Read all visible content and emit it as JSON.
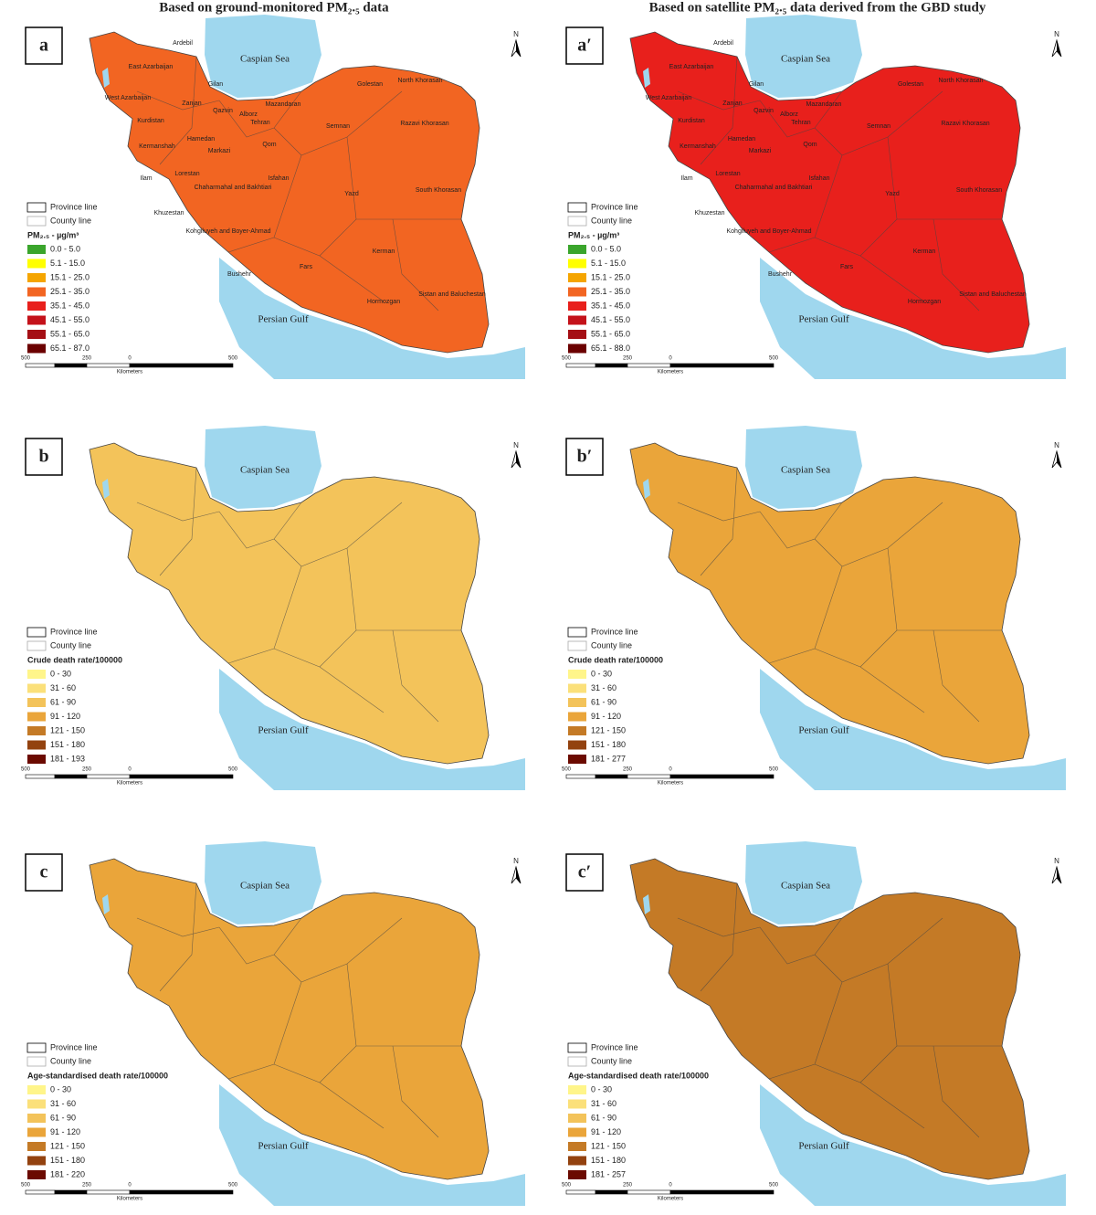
{
  "column_titles": [
    "Based on ground-monitored PM₂.₅ data",
    "Based on satellite PM₂.₅ data derived from the GBD study"
  ],
  "north": "N",
  "seas": [
    "Caspian Sea",
    "Persian Gulf"
  ],
  "boundaries": [
    "Province line",
    "County line"
  ],
  "scale_bar": {
    "ticks": [
      "500",
      "250",
      "0",
      "500"
    ],
    "unit": "Kilometers"
  },
  "panels": [
    {
      "label": "a",
      "legend_title": "PM₂.₅ - µg/m³",
      "map_color": "#f26522",
      "legend": [
        {
          "label": "0.0 - 5.0",
          "color": "#3aa52c"
        },
        {
          "label": "5.1 - 15.0",
          "color": "#ffff00"
        },
        {
          "label": "15.1 - 25.0",
          "color": "#f5a500"
        },
        {
          "label": "25.1 - 35.0",
          "color": "#f26522"
        },
        {
          "label": "35.1 - 45.0",
          "color": "#e8201c"
        },
        {
          "label": "45.1 - 55.0",
          "color": "#c4121a"
        },
        {
          "label": "55.1 - 65.0",
          "color": "#a50f15"
        },
        {
          "label": "65.1 - 87.0",
          "color": "#6b0000"
        }
      ],
      "provinces": [
        "Ardebil",
        "East Azarbaijan",
        "Gilan",
        "West Azarbaijan",
        "Zanjan",
        "Qazvin",
        "Alborz",
        "Tehran",
        "Mazandaran",
        "Golestan",
        "North Khorasan",
        "Razavi Khorasan",
        "Semnan",
        "Kurdistan",
        "Kermanshah",
        "Hamedan",
        "Markazi",
        "Qom",
        "Lorestan",
        "Ilam",
        "Isfahan",
        "Chaharmahal and Bakhtiari",
        "Khuzestan",
        "Kohgiluyeh and Boyer-Ahmad",
        "Yazd",
        "South Khorasan",
        "Bushehr",
        "Fars",
        "Kerman",
        "Hormozgan",
        "Sistan and Baluchestan"
      ]
    },
    {
      "label": "a′",
      "legend_title": "PM₂.₅ - µg/m³",
      "map_color": "#e8201c",
      "legend": [
        {
          "label": "0.0 - 5.0",
          "color": "#3aa52c"
        },
        {
          "label": "5.1 - 15.0",
          "color": "#ffff00"
        },
        {
          "label": "15.1 - 25.0",
          "color": "#f5a500"
        },
        {
          "label": "25.1 - 35.0",
          "color": "#f26522"
        },
        {
          "label": "35.1 - 45.0",
          "color": "#e8201c"
        },
        {
          "label": "45.1 - 55.0",
          "color": "#c4121a"
        },
        {
          "label": "55.1 - 65.0",
          "color": "#a50f15"
        },
        {
          "label": "65.1 - 88.0",
          "color": "#6b0000"
        }
      ],
      "provinces": [
        "Ardebil",
        "East Azarbaijan",
        "Gilan",
        "West Azarbaijan",
        "Zanjan",
        "Qazvin",
        "Alborz",
        "Tehran",
        "Mazandaran",
        "Golestan",
        "North Khorasan",
        "Razavi Khorasan",
        "Semnan",
        "Kurdistan",
        "Kermanshah",
        "Hamedan",
        "Markazi",
        "Qom",
        "Lorestan",
        "Ilam",
        "Isfahan",
        "Chaharmahal and Bakhtiari",
        "Khuzestan",
        "Kohgiluyeh and Boyer-Ahmad",
        "Yazd",
        "South Khorasan",
        "Bushehr",
        "Fars",
        "Kerman",
        "Hormozgan",
        "Sistan and Baluchestan"
      ]
    },
    {
      "label": "b",
      "legend_title": "Crude death rate/100000",
      "map_color": "#f3c35a",
      "legend": [
        {
          "label": "0 - 30",
          "color": "#fff58a"
        },
        {
          "label": "31 - 60",
          "color": "#fbe07a"
        },
        {
          "label": "61 - 90",
          "color": "#f3c35a"
        },
        {
          "label": "91 - 120",
          "color": "#eaa53a"
        },
        {
          "label": "121 - 150",
          "color": "#c47a26"
        },
        {
          "label": "151 - 180",
          "color": "#93420f"
        },
        {
          "label": "181 - 193",
          "color": "#6b0a00"
        }
      ]
    },
    {
      "label": "b′",
      "legend_title": "Crude death rate/100000",
      "map_color": "#eaa53a",
      "legend": [
        {
          "label": "0 - 30",
          "color": "#fff58a"
        },
        {
          "label": "31 - 60",
          "color": "#fbe07a"
        },
        {
          "label": "61 - 90",
          "color": "#f3c35a"
        },
        {
          "label": "91 - 120",
          "color": "#eaa53a"
        },
        {
          "label": "121 - 150",
          "color": "#c47a26"
        },
        {
          "label": "151 - 180",
          "color": "#93420f"
        },
        {
          "label": "181 - 277",
          "color": "#6b0a00"
        }
      ]
    },
    {
      "label": "c",
      "legend_title": "Age-standardised death rate/100000",
      "map_color": "#eaa53a",
      "legend": [
        {
          "label": "0 - 30",
          "color": "#fff58a"
        },
        {
          "label": "31 - 60",
          "color": "#fbe07a"
        },
        {
          "label": "61 - 90",
          "color": "#f3c35a"
        },
        {
          "label": "91 - 120",
          "color": "#eaa53a"
        },
        {
          "label": "121 - 150",
          "color": "#c47a26"
        },
        {
          "label": "151 - 180",
          "color": "#93420f"
        },
        {
          "label": "181 - 220",
          "color": "#6b0a00"
        }
      ]
    },
    {
      "label": "c′",
      "legend_title": "Age-standardised death rate/100000",
      "map_color": "#c47a26",
      "legend": [
        {
          "label": "0 - 30",
          "color": "#fff58a"
        },
        {
          "label": "31 - 60",
          "color": "#fbe07a"
        },
        {
          "label": "61 - 90",
          "color": "#f3c35a"
        },
        {
          "label": "91 - 120",
          "color": "#eaa53a"
        },
        {
          "label": "121 - 150",
          "color": "#c47a26"
        },
        {
          "label": "151 - 180",
          "color": "#93420f"
        },
        {
          "label": "181 - 257",
          "color": "#6b0a00"
        }
      ]
    }
  ]
}
